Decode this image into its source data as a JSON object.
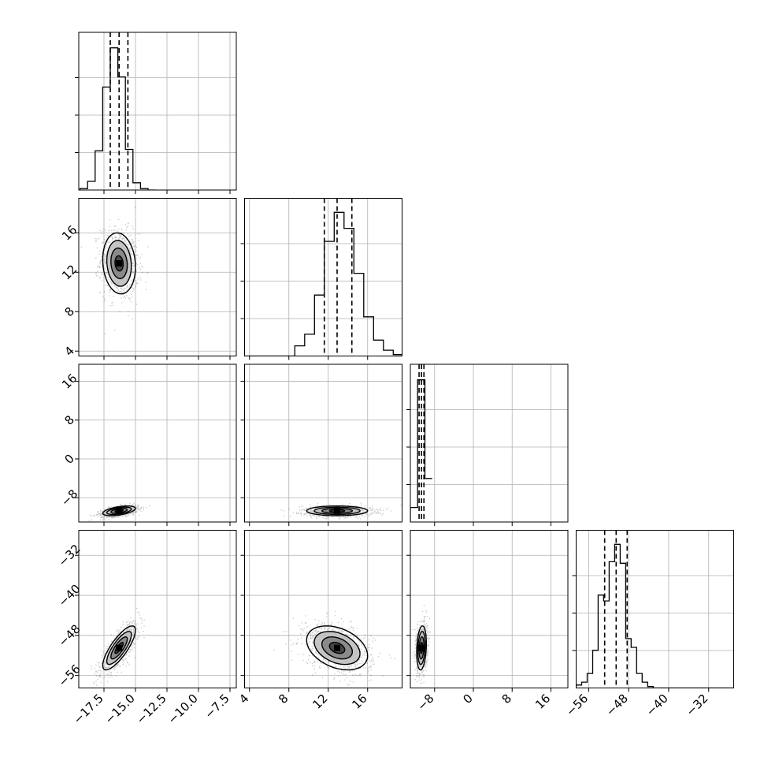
{
  "chart_data": {
    "type": "corner",
    "title": "",
    "parameters": [
      {
        "label": "",
        "range": [
          -19.5,
          -7.0
        ],
        "ticks": [
          -17.5,
          -15.0,
          -12.5,
          -10.0,
          -7.5
        ],
        "tick_labels": [
          "−17.5",
          "−15.0",
          "−12.5",
          "−10.0",
          "−7.5"
        ],
        "quantiles": [
          -17.0,
          -16.3,
          -15.6
        ]
      },
      {
        "label": "",
        "range": [
          3.5,
          19.5
        ],
        "ticks": [
          4,
          8,
          12,
          16
        ],
        "tick_labels": [
          "4",
          "8",
          "12",
          "16"
        ],
        "quantiles": [
          11.6,
          12.9,
          14.4
        ]
      },
      {
        "label": "",
        "range": [
          -13.0,
          19.5
        ],
        "ticks": [
          -8,
          0,
          8,
          16
        ],
        "tick_labels": [
          "−8",
          "0",
          "8",
          "16"
        ],
        "quantiles": [
          -11.2,
          -10.7,
          -10.2
        ]
      },
      {
        "label": "",
        "range": [
          -58.5,
          -27.0
        ],
        "ticks": [
          -56,
          -48,
          -40,
          -32
        ],
        "tick_labels": [
          "−56",
          "−48",
          "−40",
          "−32"
        ],
        "quantiles": [
          -52.8,
          -50.5,
          -48.3
        ]
      }
    ],
    "histograms": [
      {
        "param": 0,
        "bin_edges": [
          -19.4,
          -18.8,
          -18.2,
          -17.6,
          -17.0,
          -16.4,
          -15.8,
          -15.2,
          -14.6,
          -14.0,
          -13.4
        ],
        "counts": [
          0.01,
          0.06,
          0.27,
          0.71,
          0.98,
          0.78,
          0.28,
          0.05,
          0.01,
          0.0
        ]
      },
      {
        "param": 1,
        "bin_edges": [
          3.6,
          4.6,
          5.6,
          6.6,
          7.6,
          8.6,
          9.6,
          10.6,
          11.6,
          12.6,
          13.6,
          14.6,
          15.6,
          16.6,
          17.6,
          18.6,
          19.6
        ],
        "counts": [
          0.0,
          0.0,
          0.0,
          0.0,
          0.0,
          0.07,
          0.15,
          0.42,
          0.79,
          0.99,
          0.88,
          0.57,
          0.27,
          0.11,
          0.04,
          0.01
        ]
      },
      {
        "param": 2,
        "bin_edges": [
          -13.0,
          -11.5,
          -10.0,
          -8.5
        ],
        "counts": [
          0.1,
          0.98,
          0.3
        ]
      },
      {
        "param": 3,
        "bin_edges": [
          -58.5,
          -57.4,
          -56.3,
          -55.2,
          -54.1,
          -53.0,
          -51.9,
          -50.8,
          -49.7,
          -48.6,
          -47.5,
          -46.4,
          -45.3,
          -44.2,
          -43.1,
          -42.0,
          -27.0
        ],
        "counts": [
          0.02,
          0.04,
          0.1,
          0.26,
          0.64,
          0.6,
          0.87,
          0.99,
          0.86,
          0.34,
          0.28,
          0.1,
          0.04,
          0.01,
          0.0,
          0.0
        ]
      }
    ],
    "joint_contours": [
      {
        "x": 0,
        "y": 1,
        "center": [
          -16.3,
          12.9
        ],
        "sigma": [
          0.65,
          1.55
        ],
        "rho": -0.12
      },
      {
        "x": 0,
        "y": 2,
        "center": [
          -16.3,
          -10.7
        ],
        "sigma": [
          0.65,
          0.5
        ],
        "rho": 0.5
      },
      {
        "x": 1,
        "y": 2,
        "center": [
          12.9,
          -10.7
        ],
        "sigma": [
          1.55,
          0.5
        ],
        "rho": 0.0
      },
      {
        "x": 0,
        "y": 3,
        "center": [
          -16.3,
          -50.5
        ],
        "sigma": [
          0.65,
          2.2
        ],
        "rho": 0.8
      },
      {
        "x": 1,
        "y": 3,
        "center": [
          12.9,
          -50.5
        ],
        "sigma": [
          1.55,
          2.2
        ],
        "rho": -0.35
      },
      {
        "x": 2,
        "y": 3,
        "center": [
          -10.7,
          -50.5
        ],
        "sigma": [
          0.5,
          2.2
        ],
        "rho": 0.2
      }
    ],
    "contour_levels_sigma": [
      0.5,
      1.0,
      1.5,
      2.0
    ],
    "grid": true,
    "legend": "none"
  }
}
